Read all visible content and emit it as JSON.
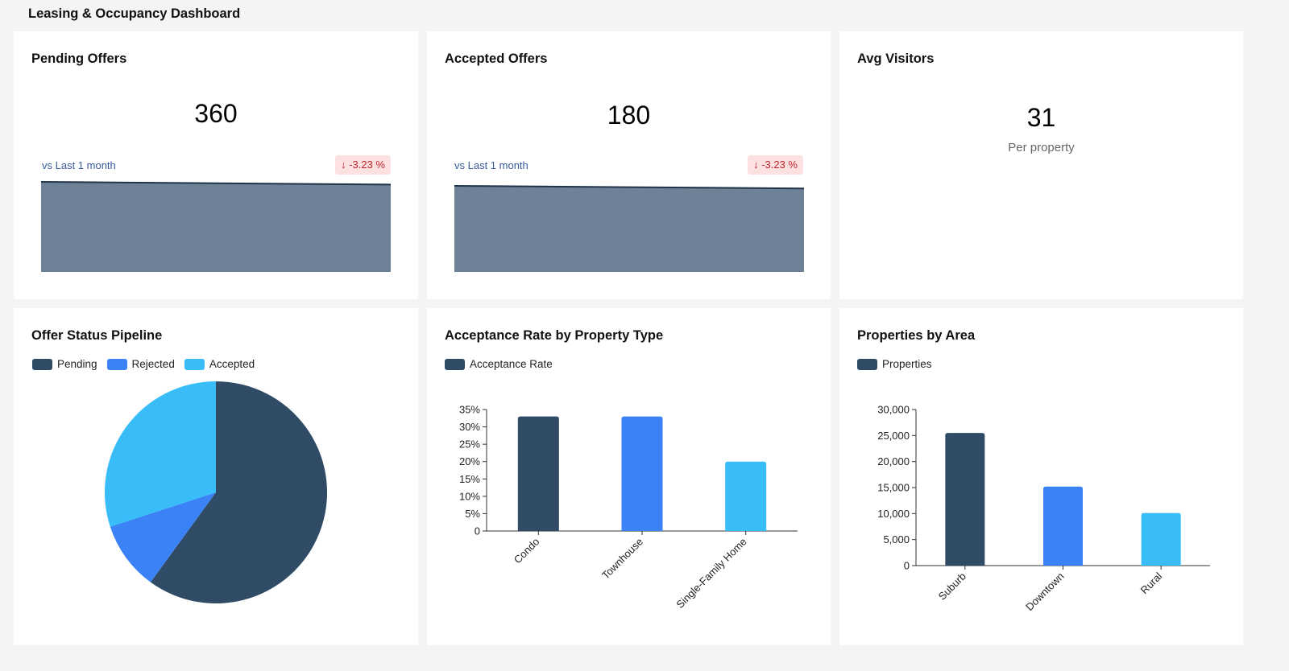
{
  "dashboard": {
    "title": "Leasing & Occupancy Dashboard"
  },
  "colors": {
    "navy": "#2f4b66",
    "blue": "#3b82f6",
    "sky": "#38bdf8",
    "spark_fill": "#6f8196",
    "spark_line": "#1f3448",
    "delta_bg": "#fde0e0",
    "delta_text": "#c0262d"
  },
  "kpis": {
    "pending": {
      "title": "Pending Offers",
      "value": "360",
      "comparison": "vs Last 1 month",
      "delta": "↓ -3.23 %",
      "trend": [
        1.0,
        0.985,
        0.97
      ]
    },
    "accepted": {
      "title": "Accepted Offers",
      "value": "180",
      "comparison": "vs Last 1 month",
      "delta": "↓ -3.23 %",
      "trend": [
        1.0,
        0.985,
        0.97
      ]
    },
    "visitors": {
      "title": "Avg Visitors",
      "value": "31",
      "subtitle": "Per property"
    }
  },
  "chart_data": [
    {
      "type": "pie",
      "title": "Offer Status Pipeline",
      "legend": [
        "Pending",
        "Rejected",
        "Accepted"
      ],
      "legend_position": "top-left",
      "categories": [
        "Pending",
        "Rejected",
        "Accepted"
      ],
      "values": [
        60,
        10,
        30
      ],
      "colors": [
        "#2f4b66",
        "#3b82f6",
        "#38bdf8"
      ]
    },
    {
      "type": "bar",
      "title": "Acceptance Rate by Property Type",
      "legend": [
        "Acceptance Rate"
      ],
      "legend_position": "top-left",
      "categories": [
        "Condo",
        "Townhouse",
        "Single-Family Home"
      ],
      "values": [
        33,
        33,
        20
      ],
      "colors": [
        "#2f4b66",
        "#3b82f6",
        "#38bdf8"
      ],
      "ylim": [
        0,
        35
      ],
      "yticks": [
        "0",
        "5%",
        "10%",
        "15%",
        "20%",
        "25%",
        "30%",
        "35%"
      ],
      "ytick_values": [
        0,
        5,
        10,
        15,
        20,
        25,
        30,
        35
      ],
      "grid": false
    },
    {
      "type": "bar",
      "title": "Properties by Area",
      "legend": [
        "Properties"
      ],
      "legend_position": "top-left",
      "categories": [
        "Suburb",
        "Downtown",
        "Rural"
      ],
      "values": [
        25500,
        15200,
        10100
      ],
      "colors": [
        "#2f4b66",
        "#3b82f6",
        "#38bdf8"
      ],
      "ylim": [
        0,
        30000
      ],
      "yticks": [
        "0",
        "5,000",
        "10,000",
        "15,000",
        "20,000",
        "25,000",
        "30,000"
      ],
      "ytick_values": [
        0,
        5000,
        10000,
        15000,
        20000,
        25000,
        30000
      ],
      "grid": false
    }
  ]
}
